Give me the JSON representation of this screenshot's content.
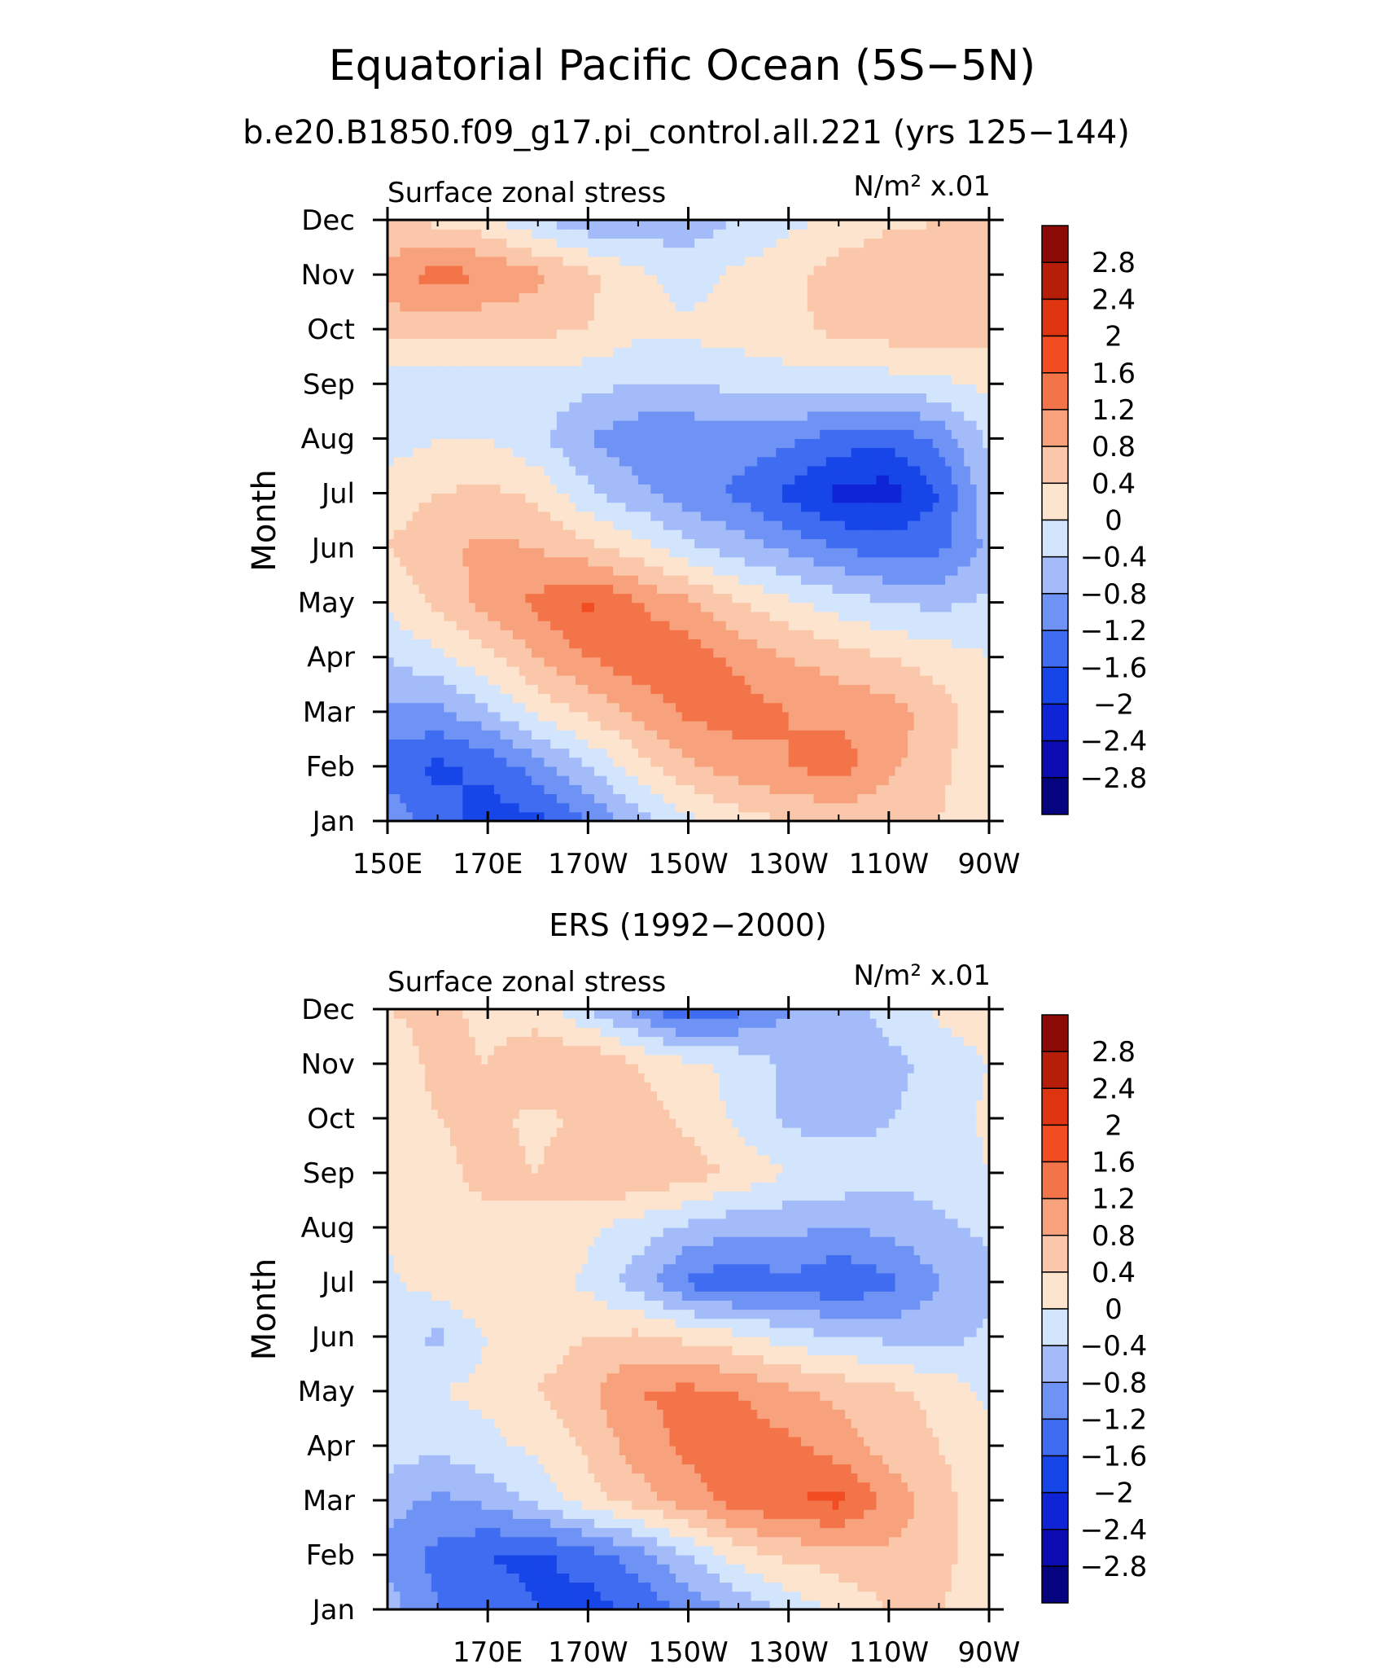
{
  "title": "Equatorial Pacific Ocean (5S−5N)",
  "subtitle": "b.e20.B1850.f09_g17.pi_control.all.221 (yrs 125−144)",
  "panel2_title": "ERS (1992−2000)",
  "chart_data": [
    {
      "type": "heatmap",
      "variable_label": "Surface zonal stress",
      "units_label": "N/m² x.01",
      "ylabel": "Month",
      "xlabel": "",
      "x_tick_labels": [
        "150E",
        "170E",
        "170W",
        "150W",
        "130W",
        "110W",
        "90W"
      ],
      "x_tick_lons": [
        150,
        170,
        190,
        210,
        230,
        250,
        270
      ],
      "xlim": [
        150,
        270
      ],
      "y_tick_labels": [
        "Jan",
        "Feb",
        "Mar",
        "Apr",
        "May",
        "Jun",
        "Jul",
        "Aug",
        "Sep",
        "Oct",
        "Nov",
        "Dec"
      ],
      "ylim": [
        1,
        12
      ],
      "levels": [
        -2.8,
        -2.4,
        -2,
        -1.6,
        -1.2,
        -0.8,
        -0.4,
        0,
        0.4,
        0.8,
        1.2,
        1.6,
        2,
        2.4,
        2.8
      ],
      "grid_lon": [
        150,
        160,
        170,
        180,
        190,
        200,
        210,
        220,
        230,
        240,
        250,
        260,
        270
      ],
      "grid_month": [
        1,
        2,
        3,
        4,
        5,
        6,
        7,
        8,
        9,
        10,
        11,
        12
      ],
      "values": [
        [
          -0.9,
          -1.4,
          -1.8,
          -1.7,
          -1.2,
          -0.6,
          -0.1,
          0.2,
          0.4,
          0.5,
          0.5,
          0.4,
          0.1
        ],
        [
          -1.4,
          -1.7,
          -1.5,
          -1.0,
          -0.4,
          0.2,
          0.7,
          1.0,
          1.2,
          1.4,
          0.9,
          0.5,
          0.1
        ],
        [
          -0.9,
          -0.9,
          -0.5,
          0.1,
          0.5,
          0.9,
          1.3,
          1.4,
          1.2,
          1.1,
          1.0,
          0.6,
          0.1
        ],
        [
          -0.4,
          -0.1,
          0.3,
          0.8,
          1.2,
          1.5,
          1.4,
          1.1,
          0.8,
          0.6,
          0.4,
          0.2,
          0.0
        ],
        [
          0.1,
          0.5,
          1.0,
          1.3,
          1.7,
          1.2,
          0.9,
          0.4,
          0.1,
          -0.2,
          -0.4,
          -0.5,
          -0.3
        ],
        [
          0.4,
          0.7,
          0.9,
          0.8,
          0.5,
          0.2,
          -0.3,
          -0.6,
          -0.9,
          -1.2,
          -1.4,
          -1.3,
          -0.7
        ],
        [
          0.2,
          0.4,
          0.5,
          0.3,
          -0.3,
          -0.7,
          -1.0,
          -1.3,
          -1.7,
          -2.1,
          -2.2,
          -1.6,
          -0.5
        ],
        [
          -0.2,
          0.0,
          0.0,
          -0.3,
          -0.8,
          -1.1,
          -1.1,
          -1.0,
          -1.1,
          -1.4,
          -1.5,
          -1.1,
          -0.3
        ],
        [
          -0.4,
          -0.3,
          -0.2,
          -0.2,
          -0.3,
          -0.4,
          -0.4,
          -0.3,
          -0.2,
          -0.3,
          -0.2,
          -0.1,
          0.1
        ],
        [
          0.6,
          0.5,
          0.5,
          0.5,
          0.4,
          0.1,
          0.1,
          0.2,
          0.3,
          0.5,
          0.6,
          0.7,
          0.5
        ],
        [
          1.0,
          1.4,
          1.2,
          0.9,
          0.5,
          0.1,
          -0.2,
          0.1,
          0.3,
          0.6,
          0.8,
          0.7,
          0.5
        ],
        [
          0.4,
          0.3,
          0.1,
          -0.4,
          -0.7,
          -0.7,
          -0.6,
          -0.4,
          -0.1,
          0.1,
          0.3,
          0.4,
          0.5
        ]
      ],
      "colorbar_labels": [
        "2.8",
        "2.4",
        "2",
        "1.6",
        "1.2",
        "0.8",
        "0.4",
        "0",
        "−0.4",
        "−0.8",
        "−1.2",
        "−1.6",
        "−2",
        "−2.4",
        "−2.8"
      ]
    },
    {
      "type": "heatmap",
      "variable_label": "Surface zonal stress",
      "units_label": "N/m² x.01",
      "ylabel": "Month",
      "xlabel": "",
      "x_tick_labels": [
        "170E",
        "170W",
        "150W",
        "130W",
        "110W",
        "90W"
      ],
      "x_tick_lons": [
        170,
        190,
        210,
        230,
        250,
        270
      ],
      "xlim": [
        150,
        270
      ],
      "y_tick_labels": [
        "Jan",
        "Feb",
        "Mar",
        "Apr",
        "May",
        "Jun",
        "Jul",
        "Aug",
        "Sep",
        "Oct",
        "Nov",
        "Dec"
      ],
      "ylim": [
        1,
        12
      ],
      "levels": [
        -2.8,
        -2.4,
        -2,
        -1.6,
        -1.2,
        -0.8,
        -0.4,
        0,
        0.4,
        0.8,
        1.2,
        1.6,
        2,
        2.4,
        2.8
      ],
      "grid_lon": [
        150,
        160,
        170,
        180,
        190,
        200,
        210,
        220,
        230,
        240,
        250,
        260,
        270
      ],
      "grid_month": [
        1,
        2,
        3,
        4,
        5,
        6,
        7,
        8,
        9,
        10,
        11,
        12
      ],
      "values": [
        [
          -0.6,
          -1.2,
          -1.4,
          -1.6,
          -1.8,
          -1.5,
          -1.1,
          -0.7,
          -0.3,
          0.1,
          0.4,
          0.4,
          0.3
        ],
        [
          -1.0,
          -1.3,
          -1.6,
          -1.7,
          -1.4,
          -1.0,
          -0.4,
          0.2,
          0.5,
          0.6,
          0.7,
          0.5,
          0.2
        ],
        [
          -0.6,
          -0.9,
          -0.7,
          -0.3,
          0.2,
          0.6,
          1.0,
          1.4,
          1.6,
          1.7,
          1.1,
          0.6,
          0.0
        ],
        [
          -0.2,
          -0.3,
          -0.1,
          0.1,
          0.5,
          1.0,
          1.3,
          1.4,
          1.3,
          1.0,
          0.6,
          0.4,
          0.1
        ],
        [
          -0.1,
          0.0,
          0.1,
          0.4,
          0.7,
          1.2,
          1.3,
          1.2,
          0.9,
          0.7,
          0.5,
          0.3,
          -0.1
        ],
        [
          -0.2,
          -0.5,
          0.0,
          0.2,
          0.4,
          0.5,
          0.3,
          0.1,
          -0.2,
          -0.4,
          -0.5,
          -0.6,
          -0.3
        ],
        [
          -0.1,
          0.2,
          0.4,
          0.2,
          -0.1,
          -0.6,
          -1.3,
          -1.5,
          -1.3,
          -1.6,
          -1.3,
          -0.8,
          -0.6
        ],
        [
          0.1,
          0.3,
          0.3,
          0.4,
          0.1,
          -0.2,
          -0.5,
          -0.7,
          -0.7,
          -0.8,
          -0.7,
          -0.5,
          -0.3
        ],
        [
          0.2,
          0.3,
          0.5,
          0.4,
          0.7,
          0.8,
          0.6,
          0.3,
          0.0,
          -0.1,
          -0.3,
          -0.2,
          0.0
        ],
        [
          0.1,
          0.4,
          0.5,
          0.3,
          0.5,
          0.6,
          0.3,
          -0.1,
          -0.5,
          -0.6,
          -0.4,
          -0.3,
          0.1
        ],
        [
          0.2,
          0.5,
          0.4,
          0.7,
          0.8,
          0.4,
          0.1,
          -0.1,
          -0.5,
          -0.6,
          -0.5,
          -0.3,
          0.0
        ],
        [
          0.4,
          0.5,
          0.3,
          0.2,
          -0.4,
          -1.0,
          -1.6,
          -1.3,
          -0.8,
          -0.5,
          -0.3,
          0.1,
          0.3
        ]
      ],
      "colorbar_labels": [
        "2.8",
        "2.4",
        "2",
        "1.6",
        "1.2",
        "0.8",
        "0.4",
        "0",
        "−0.4",
        "−0.8",
        "−1.2",
        "−1.6",
        "−2",
        "−2.4",
        "−2.8"
      ]
    }
  ],
  "colors": {
    "palette": [
      "#06037e",
      "#0a0bb0",
      "#0f24d6",
      "#1645e8",
      "#3f6cf0",
      "#6f93f5",
      "#a3bcf9",
      "#d3e4fd",
      "#fde4cf",
      "#fbc7aa",
      "#f7a27c",
      "#f4744a",
      "#f24d22",
      "#df3410",
      "#b71e0a",
      "#8b0a06"
    ]
  }
}
